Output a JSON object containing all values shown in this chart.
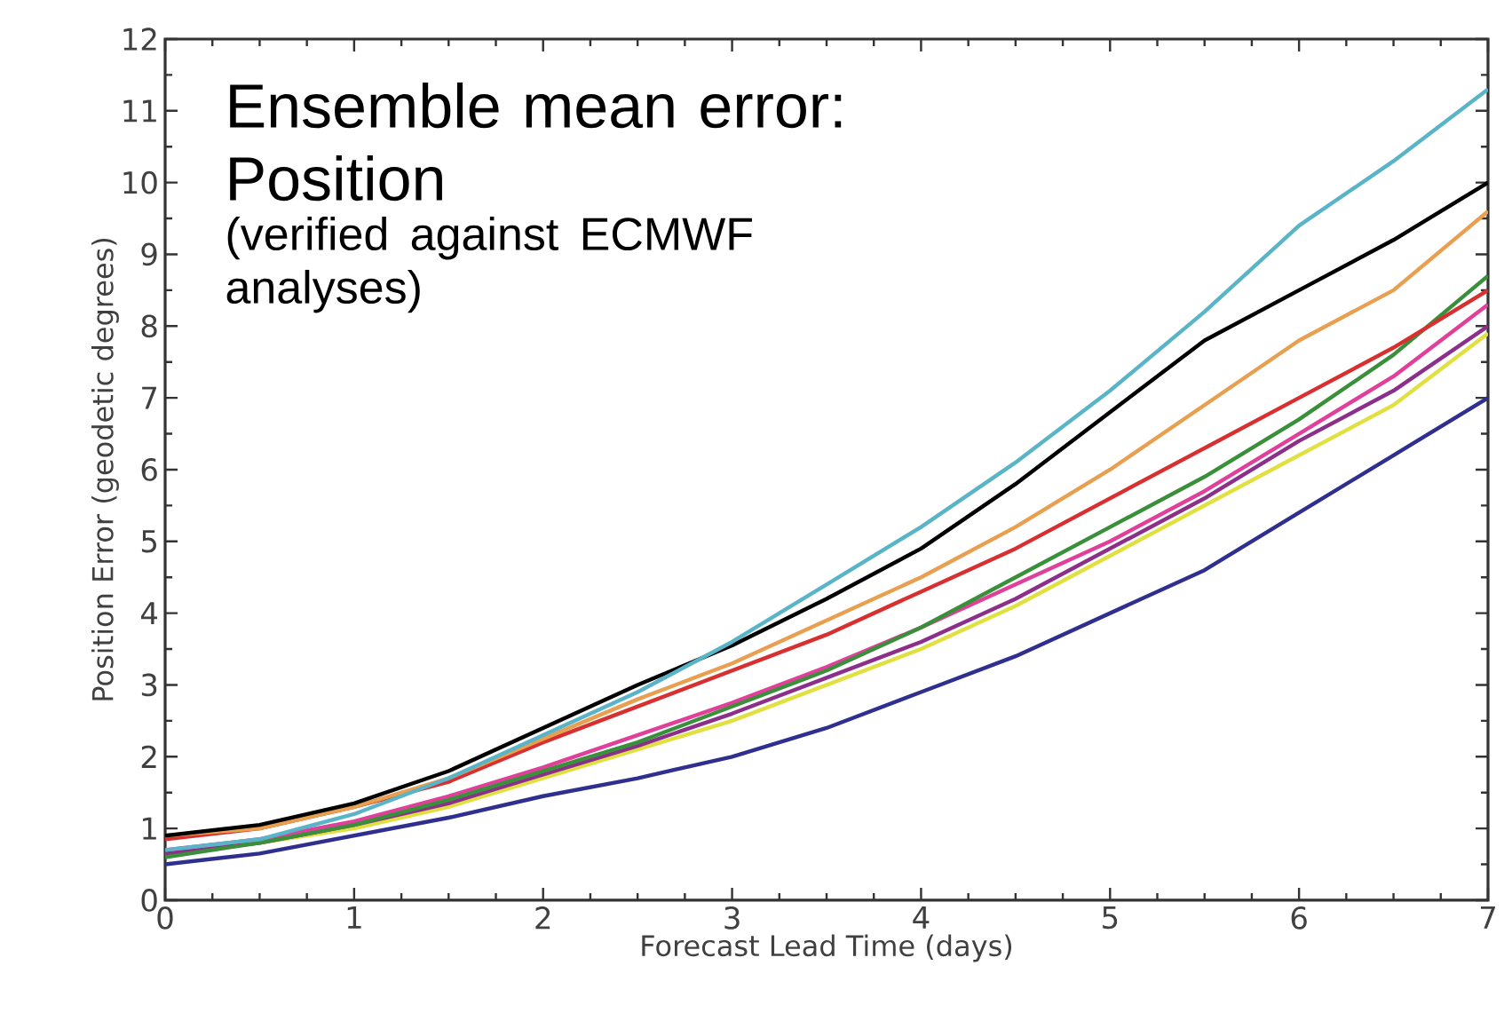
{
  "chart_data": {
    "type": "line",
    "title": "Ensemble mean error: Position",
    "subtitle": "(verified against ECMWF analyses)",
    "xlabel": "Forecast Lead Time (days)",
    "ylabel": "Position Error (geodetic degrees)",
    "x": [
      0,
      0.5,
      1,
      1.5,
      2,
      2.5,
      3,
      3.5,
      4,
      4.5,
      5,
      5.5,
      6,
      6.5,
      7
    ],
    "xlim": [
      0,
      7
    ],
    "ylim": [
      0,
      12
    ],
    "xticks": [
      0,
      1,
      2,
      3,
      4,
      5,
      6,
      7
    ],
    "yticks": [
      0,
      1,
      2,
      3,
      4,
      5,
      6,
      7,
      8,
      9,
      10,
      11,
      12
    ],
    "grid": false,
    "marker": "none",
    "line_style": "solid",
    "series": [
      {
        "color": "#2f2f8f",
        "values": [
          0.5,
          0.65,
          0.9,
          1.15,
          1.45,
          1.7,
          2.0,
          2.4,
          2.9,
          3.4,
          4.0,
          4.6,
          5.4,
          6.2,
          7.0
        ]
      },
      {
        "color": "#e0e040",
        "values": [
          0.65,
          0.8,
          1.0,
          1.3,
          1.7,
          2.1,
          2.5,
          3.0,
          3.5,
          4.1,
          4.8,
          5.5,
          6.2,
          6.9,
          7.9
        ]
      },
      {
        "color": "#8b2f8b",
        "values": [
          0.65,
          0.8,
          1.05,
          1.35,
          1.75,
          2.15,
          2.6,
          3.1,
          3.6,
          4.2,
          4.9,
          5.6,
          6.4,
          7.1,
          8.0
        ]
      },
      {
        "color": "#e0409a",
        "values": [
          0.7,
          0.85,
          1.1,
          1.45,
          1.85,
          2.3,
          2.75,
          3.25,
          3.8,
          4.4,
          5.0,
          5.7,
          6.5,
          7.3,
          8.3
        ]
      },
      {
        "color": "#3a8f3a",
        "values": [
          0.6,
          0.8,
          1.05,
          1.4,
          1.8,
          2.2,
          2.7,
          3.2,
          3.8,
          4.5,
          5.2,
          5.9,
          6.7,
          7.6,
          8.7
        ]
      },
      {
        "color": "#d83030",
        "values": [
          0.85,
          1.0,
          1.3,
          1.65,
          2.2,
          2.7,
          3.2,
          3.7,
          4.3,
          4.9,
          5.6,
          6.3,
          7.0,
          7.7,
          8.5
        ]
      },
      {
        "color": "#e8a050",
        "values": [
          0.9,
          1.0,
          1.3,
          1.7,
          2.25,
          2.8,
          3.3,
          3.9,
          4.5,
          5.2,
          6.0,
          6.9,
          7.8,
          8.5,
          9.6
        ]
      },
      {
        "color": "#000000",
        "values": [
          0.9,
          1.05,
          1.35,
          1.8,
          2.4,
          3.0,
          3.55,
          4.2,
          4.9,
          5.8,
          6.8,
          7.8,
          8.5,
          9.2,
          10.0
        ]
      },
      {
        "color": "#5ab4c8",
        "values": [
          0.7,
          0.85,
          1.2,
          1.7,
          2.3,
          2.9,
          3.6,
          4.4,
          5.2,
          6.1,
          7.1,
          8.2,
          9.4,
          10.3,
          11.3
        ]
      }
    ]
  }
}
